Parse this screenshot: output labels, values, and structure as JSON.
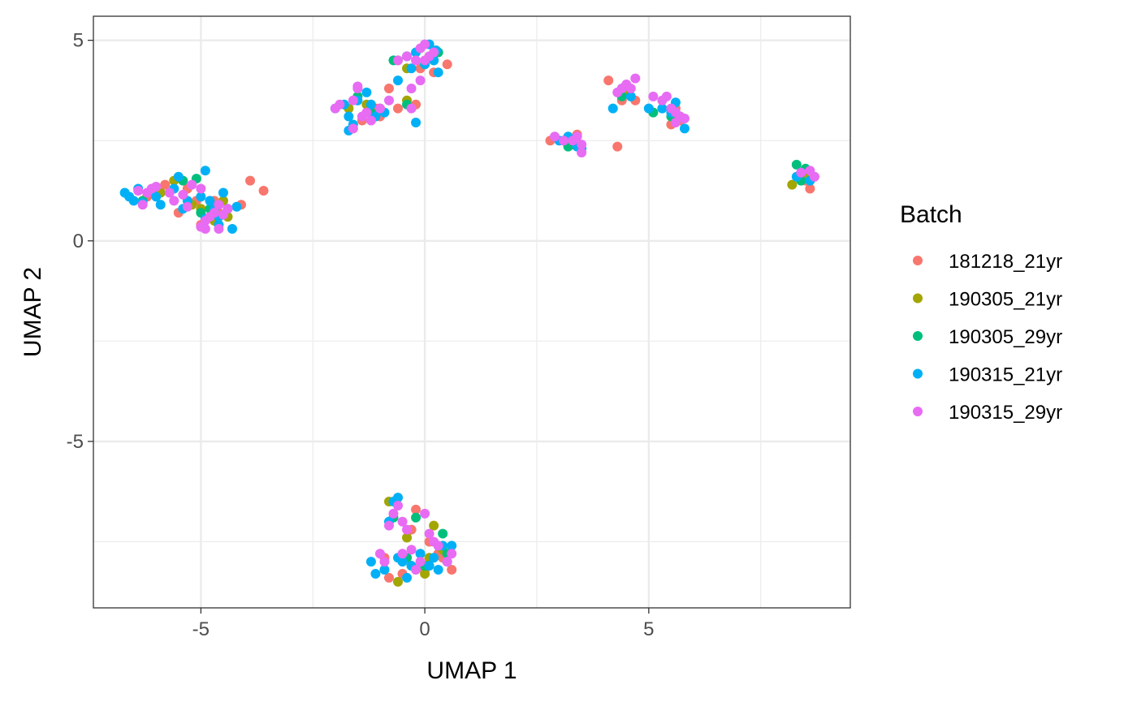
{
  "chart_data": {
    "type": "scatter",
    "title": "",
    "xlabel": "UMAP 1",
    "ylabel": "UMAP 2",
    "xlim": [
      -7.4,
      9.5
    ],
    "ylim": [
      -9.15,
      5.6
    ],
    "x_ticks": [
      -5,
      0,
      5
    ],
    "y_ticks": [
      5,
      0,
      -5
    ],
    "x_tick_labels": [
      "-5",
      "0",
      "5"
    ],
    "y_tick_labels": [
      "5",
      "0",
      "-5"
    ],
    "grid": true,
    "legend": {
      "title": "Batch",
      "position": "right"
    },
    "series": [
      {
        "name": "181218_21yr",
        "color": "#F8766D",
        "points": [
          [
            -5.8,
            1.4
          ],
          [
            -5.5,
            0.7
          ],
          [
            -5.3,
            1.3
          ],
          [
            -5.0,
            0.4
          ],
          [
            -4.7,
            1.0
          ],
          [
            -4.6,
            0.7
          ],
          [
            -4.1,
            0.9
          ],
          [
            -3.9,
            1.5
          ],
          [
            -3.6,
            1.25
          ],
          [
            -6.2,
            1.1
          ],
          [
            -5.1,
            1.0
          ],
          [
            -1.4,
            3.0
          ],
          [
            -1.1,
            3.3
          ],
          [
            -0.8,
            3.8
          ],
          [
            -0.6,
            3.3
          ],
          [
            -0.2,
            3.4
          ],
          [
            0.1,
            4.6
          ],
          [
            0.2,
            4.2
          ],
          [
            0.5,
            4.4
          ],
          [
            -1.0,
            3.1
          ],
          [
            -0.1,
            4.3
          ],
          [
            2.8,
            2.5
          ],
          [
            3.2,
            2.4
          ],
          [
            3.4,
            2.65
          ],
          [
            4.1,
            4.0
          ],
          [
            4.3,
            2.35
          ],
          [
            4.4,
            3.5
          ],
          [
            4.7,
            3.5
          ],
          [
            5.5,
            2.9
          ],
          [
            5.7,
            3.0
          ],
          [
            5.6,
            3.3
          ],
          [
            8.5,
            1.5
          ],
          [
            8.6,
            1.3
          ],
          [
            8.7,
            1.6
          ],
          [
            -0.9,
            -7.9
          ],
          [
            -0.8,
            -8.4
          ],
          [
            -0.5,
            -8.3
          ],
          [
            -0.2,
            -6.7
          ],
          [
            0.1,
            -7.5
          ],
          [
            0.3,
            -7.8
          ],
          [
            0.6,
            -8.2
          ],
          [
            -0.3,
            -7.2
          ],
          [
            0.0,
            -8.2
          ],
          [
            0.4,
            -7.9
          ]
        ]
      },
      {
        "name": "190305_21yr",
        "color": "#A3A500",
        "points": [
          [
            -5.9,
            1.2
          ],
          [
            -5.6,
            1.5
          ],
          [
            -5.2,
            0.9
          ],
          [
            -4.7,
            0.5
          ],
          [
            -4.5,
            1.0
          ],
          [
            -4.4,
            0.6
          ],
          [
            -5.0,
            0.8
          ],
          [
            -1.7,
            3.3
          ],
          [
            -1.3,
            3.4
          ],
          [
            -1.0,
            3.3
          ],
          [
            -0.4,
            4.3
          ],
          [
            -0.6,
            4.5
          ],
          [
            -0.4,
            3.5
          ],
          [
            0.0,
            4.4
          ],
          [
            3.1,
            2.5
          ],
          [
            3.3,
            2.4
          ],
          [
            4.5,
            3.7
          ],
          [
            8.2,
            1.4
          ],
          [
            8.5,
            1.7
          ],
          [
            -0.8,
            -6.5
          ],
          [
            -0.6,
            -8.5
          ],
          [
            -0.3,
            -8.1
          ],
          [
            0.0,
            -8.3
          ],
          [
            0.2,
            -7.1
          ],
          [
            0.4,
            -7.7
          ],
          [
            -0.4,
            -7.4
          ],
          [
            0.1,
            -7.9
          ]
        ]
      },
      {
        "name": "190305_29yr",
        "color": "#00BF7D",
        "points": [
          [
            -5.4,
            1.5
          ],
          [
            -5.1,
            1.55
          ],
          [
            -4.8,
            0.8
          ],
          [
            -5.0,
            0.7
          ],
          [
            -6.3,
            1.0
          ],
          [
            -1.5,
            3.6
          ],
          [
            -1.2,
            3.2
          ],
          [
            -0.4,
            3.4
          ],
          [
            0.2,
            4.5
          ],
          [
            -0.7,
            4.5
          ],
          [
            0.3,
            4.7
          ],
          [
            3.2,
            2.35
          ],
          [
            4.4,
            3.6
          ],
          [
            5.1,
            3.2
          ],
          [
            5.5,
            3.1
          ],
          [
            8.3,
            1.9
          ],
          [
            8.5,
            1.8
          ],
          [
            8.4,
            1.5
          ],
          [
            -0.7,
            -6.9
          ],
          [
            -0.2,
            -6.9
          ],
          [
            0.4,
            -7.3
          ],
          [
            0.5,
            -7.8
          ],
          [
            0.0,
            -8.1
          ],
          [
            -0.4,
            -7.9
          ],
          [
            0.3,
            -7.6
          ]
        ]
      },
      {
        "name": "190315_21yr",
        "color": "#00B0F6",
        "points": [
          [
            -6.7,
            1.2
          ],
          [
            -6.5,
            1.0
          ],
          [
            -6.4,
            1.3
          ],
          [
            -6.3,
            0.95
          ],
          [
            -6.0,
            1.1
          ],
          [
            -5.9,
            0.9
          ],
          [
            -5.6,
            1.3
          ],
          [
            -5.5,
            1.6
          ],
          [
            -5.4,
            0.8
          ],
          [
            -5.3,
            1.0
          ],
          [
            -5.0,
            1.1
          ],
          [
            -4.9,
            1.75
          ],
          [
            -4.8,
            1.0
          ],
          [
            -4.7,
            0.8
          ],
          [
            -4.6,
            0.6
          ],
          [
            -4.5,
            1.2
          ],
          [
            -4.4,
            0.8
          ],
          [
            -4.3,
            0.3
          ],
          [
            -4.6,
            0.4
          ],
          [
            -4.2,
            0.85
          ],
          [
            -6.6,
            1.1
          ],
          [
            -6.1,
            1.25
          ],
          [
            -4.9,
            0.55
          ],
          [
            -2.0,
            3.3
          ],
          [
            -1.8,
            3.4
          ],
          [
            -1.7,
            3.1
          ],
          [
            -1.6,
            2.9
          ],
          [
            -1.5,
            3.5
          ],
          [
            -1.3,
            3.7
          ],
          [
            -1.2,
            3.4
          ],
          [
            -1.1,
            3.1
          ],
          [
            -0.9,
            3.2
          ],
          [
            -0.6,
            4.0
          ],
          [
            -0.4,
            4.6
          ],
          [
            -0.3,
            4.3
          ],
          [
            -0.2,
            4.7
          ],
          [
            0.0,
            4.4
          ],
          [
            0.1,
            4.9
          ],
          [
            0.2,
            4.5
          ],
          [
            0.3,
            4.2
          ],
          [
            -0.2,
            2.95
          ],
          [
            -1.7,
            2.75
          ],
          [
            0.25,
            4.75
          ],
          [
            3.0,
            2.5
          ],
          [
            3.2,
            2.6
          ],
          [
            3.4,
            2.35
          ],
          [
            3.5,
            2.3
          ],
          [
            4.2,
            3.3
          ],
          [
            4.4,
            3.8
          ],
          [
            4.6,
            3.6
          ],
          [
            5.0,
            3.3
          ],
          [
            5.3,
            3.3
          ],
          [
            5.5,
            3.2
          ],
          [
            5.6,
            3.45
          ],
          [
            5.7,
            3.1
          ],
          [
            5.8,
            2.8
          ],
          [
            8.4,
            1.7
          ],
          [
            8.6,
            1.5
          ],
          [
            8.3,
            1.6
          ],
          [
            -1.2,
            -8.0
          ],
          [
            -1.1,
            -8.3
          ],
          [
            -0.9,
            -8.2
          ],
          [
            -0.8,
            -7.0
          ],
          [
            -0.7,
            -6.5
          ],
          [
            -0.6,
            -6.4
          ],
          [
            -0.5,
            -8.0
          ],
          [
            -0.4,
            -8.4
          ],
          [
            -0.3,
            -8.1
          ],
          [
            -0.1,
            -7.8
          ],
          [
            0.1,
            -8.1
          ],
          [
            0.2,
            -7.9
          ],
          [
            0.3,
            -8.2
          ],
          [
            0.4,
            -7.6
          ],
          [
            0.6,
            -7.6
          ],
          [
            -0.6,
            -7.9
          ],
          [
            0.5,
            -8.0
          ]
        ]
      },
      {
        "name": "190315_29yr",
        "color": "#E76BF3",
        "points": [
          [
            -6.4,
            1.25
          ],
          [
            -6.3,
            0.9
          ],
          [
            -6.2,
            1.2
          ],
          [
            -6.1,
            1.3
          ],
          [
            -6.0,
            1.35
          ],
          [
            -5.7,
            1.2
          ],
          [
            -5.6,
            1.0
          ],
          [
            -5.4,
            1.15
          ],
          [
            -5.3,
            0.85
          ],
          [
            -5.2,
            1.4
          ],
          [
            -5.0,
            1.3
          ],
          [
            -4.9,
            0.5
          ],
          [
            -4.8,
            0.6
          ],
          [
            -4.7,
            0.7
          ],
          [
            -4.6,
            0.9
          ],
          [
            -4.5,
            0.65
          ],
          [
            -4.4,
            0.8
          ],
          [
            -4.9,
            0.3
          ],
          [
            -4.6,
            0.3
          ],
          [
            -5.0,
            0.35
          ],
          [
            -2.0,
            3.3
          ],
          [
            -1.9,
            3.4
          ],
          [
            -1.6,
            3.5
          ],
          [
            -1.5,
            3.8
          ],
          [
            -1.4,
            3.1
          ],
          [
            -1.3,
            3.2
          ],
          [
            -1.2,
            3.0
          ],
          [
            -1.0,
            3.3
          ],
          [
            -0.8,
            3.5
          ],
          [
            -0.6,
            4.5
          ],
          [
            -0.4,
            4.6
          ],
          [
            -0.3,
            3.8
          ],
          [
            -0.2,
            4.5
          ],
          [
            -0.1,
            4.8
          ],
          [
            0.0,
            4.9
          ],
          [
            0.1,
            4.6
          ],
          [
            0.2,
            4.7
          ],
          [
            -1.6,
            2.8
          ],
          [
            -0.3,
            3.3
          ],
          [
            0.0,
            4.5
          ],
          [
            -0.1,
            4.0
          ],
          [
            -1.5,
            3.85
          ],
          [
            2.9,
            2.6
          ],
          [
            3.1,
            2.5
          ],
          [
            3.3,
            2.5
          ],
          [
            3.4,
            2.6
          ],
          [
            3.5,
            2.4
          ],
          [
            4.3,
            3.7
          ],
          [
            4.4,
            3.8
          ],
          [
            4.5,
            3.9
          ],
          [
            4.6,
            3.8
          ],
          [
            4.7,
            4.05
          ],
          [
            5.1,
            3.6
          ],
          [
            5.3,
            3.5
          ],
          [
            5.4,
            3.6
          ],
          [
            5.5,
            3.3
          ],
          [
            5.6,
            3.2
          ],
          [
            5.7,
            3.1
          ],
          [
            5.8,
            3.05
          ],
          [
            5.6,
            2.95
          ],
          [
            3.5,
            2.2
          ],
          [
            8.4,
            1.7
          ],
          [
            8.7,
            1.6
          ],
          [
            8.6,
            1.75
          ],
          [
            -1.0,
            -7.8
          ],
          [
            -0.9,
            -8.0
          ],
          [
            -0.8,
            -7.1
          ],
          [
            -0.7,
            -6.8
          ],
          [
            -0.6,
            -6.6
          ],
          [
            -0.5,
            -7.0
          ],
          [
            -0.4,
            -7.2
          ],
          [
            -0.3,
            -7.7
          ],
          [
            -0.2,
            -8.2
          ],
          [
            0.0,
            -6.8
          ],
          [
            0.1,
            -7.3
          ],
          [
            0.2,
            -7.5
          ],
          [
            0.3,
            -7.6
          ],
          [
            0.5,
            -8.0
          ],
          [
            0.6,
            -7.8
          ],
          [
            -0.5,
            -7.8
          ],
          [
            -0.1,
            -8.0
          ]
        ]
      }
    ]
  }
}
